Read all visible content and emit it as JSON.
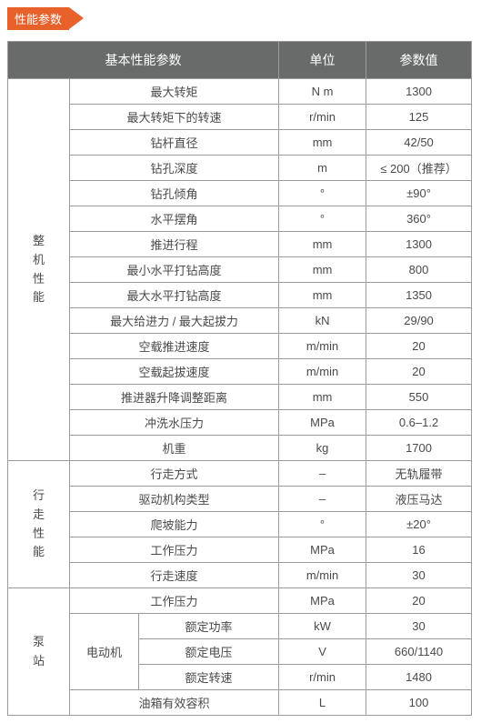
{
  "colors": {
    "tag_bg": "#e8612a",
    "header_bg": "#696b6b",
    "border": "#9a9c9c",
    "text": "#4a4a4a"
  },
  "tag_label": "性能参数",
  "headers": {
    "basic": "基本性能参数",
    "unit": "单位",
    "value": "参数值"
  },
  "groups": {
    "machine": "整\n机\n性\n能",
    "walk": "行\n走\n性\n能",
    "pump": "泵\n站",
    "motor": "电动机"
  },
  "machine_rows": [
    {
      "n": "最大转矩",
      "u": "N m",
      "v": "1300"
    },
    {
      "n": "最大转矩下的转速",
      "u": "r/min",
      "v": "125"
    },
    {
      "n": "钻杆直径",
      "u": "mm",
      "v": "42/50"
    },
    {
      "n": "钻孔深度",
      "u": "m",
      "v": "≤ 200（推荐）"
    },
    {
      "n": "钻孔倾角",
      "u": "°",
      "v": "±90°"
    },
    {
      "n": "水平摆角",
      "u": "°",
      "v": "360°"
    },
    {
      "n": "推进行程",
      "u": "mm",
      "v": "1300"
    },
    {
      "n": "最小水平打钻高度",
      "u": "mm",
      "v": "800"
    },
    {
      "n": "最大水平打钻高度",
      "u": "mm",
      "v": "1350"
    },
    {
      "n": "最大给进力 / 最大起拔力",
      "u": "kN",
      "v": "29/90"
    },
    {
      "n": "空载推进速度",
      "u": "m/min",
      "v": "20"
    },
    {
      "n": "空载起拔速度",
      "u": "m/min",
      "v": "20"
    },
    {
      "n": "推进器升降调整距离",
      "u": "mm",
      "v": "550"
    },
    {
      "n": "冲洗水压力",
      "u": "MPa",
      "v": "0.6–1.2"
    },
    {
      "n": "机重",
      "u": "kg",
      "v": "1700"
    }
  ],
  "walk_rows": [
    {
      "n": "行走方式",
      "u": "–",
      "v": "无轨履带"
    },
    {
      "n": "驱动机构类型",
      "u": "–",
      "v": "液压马达"
    },
    {
      "n": "爬坡能力",
      "u": "°",
      "v": "±20°"
    },
    {
      "n": "工作压力",
      "u": "MPa",
      "v": "16"
    },
    {
      "n": "行走速度",
      "u": "m/min",
      "v": "30"
    }
  ],
  "pump_first": {
    "n": "工作压力",
    "u": "MPa",
    "v": "20"
  },
  "motor_rows": [
    {
      "n": "额定功率",
      "u": "kW",
      "v": "30"
    },
    {
      "n": "额定电压",
      "u": "V",
      "v": "660/1140"
    },
    {
      "n": "额定转速",
      "u": "r/min",
      "v": "1480"
    }
  ],
  "pump_last": {
    "n": "油箱有效容积",
    "u": "L",
    "v": "100"
  }
}
